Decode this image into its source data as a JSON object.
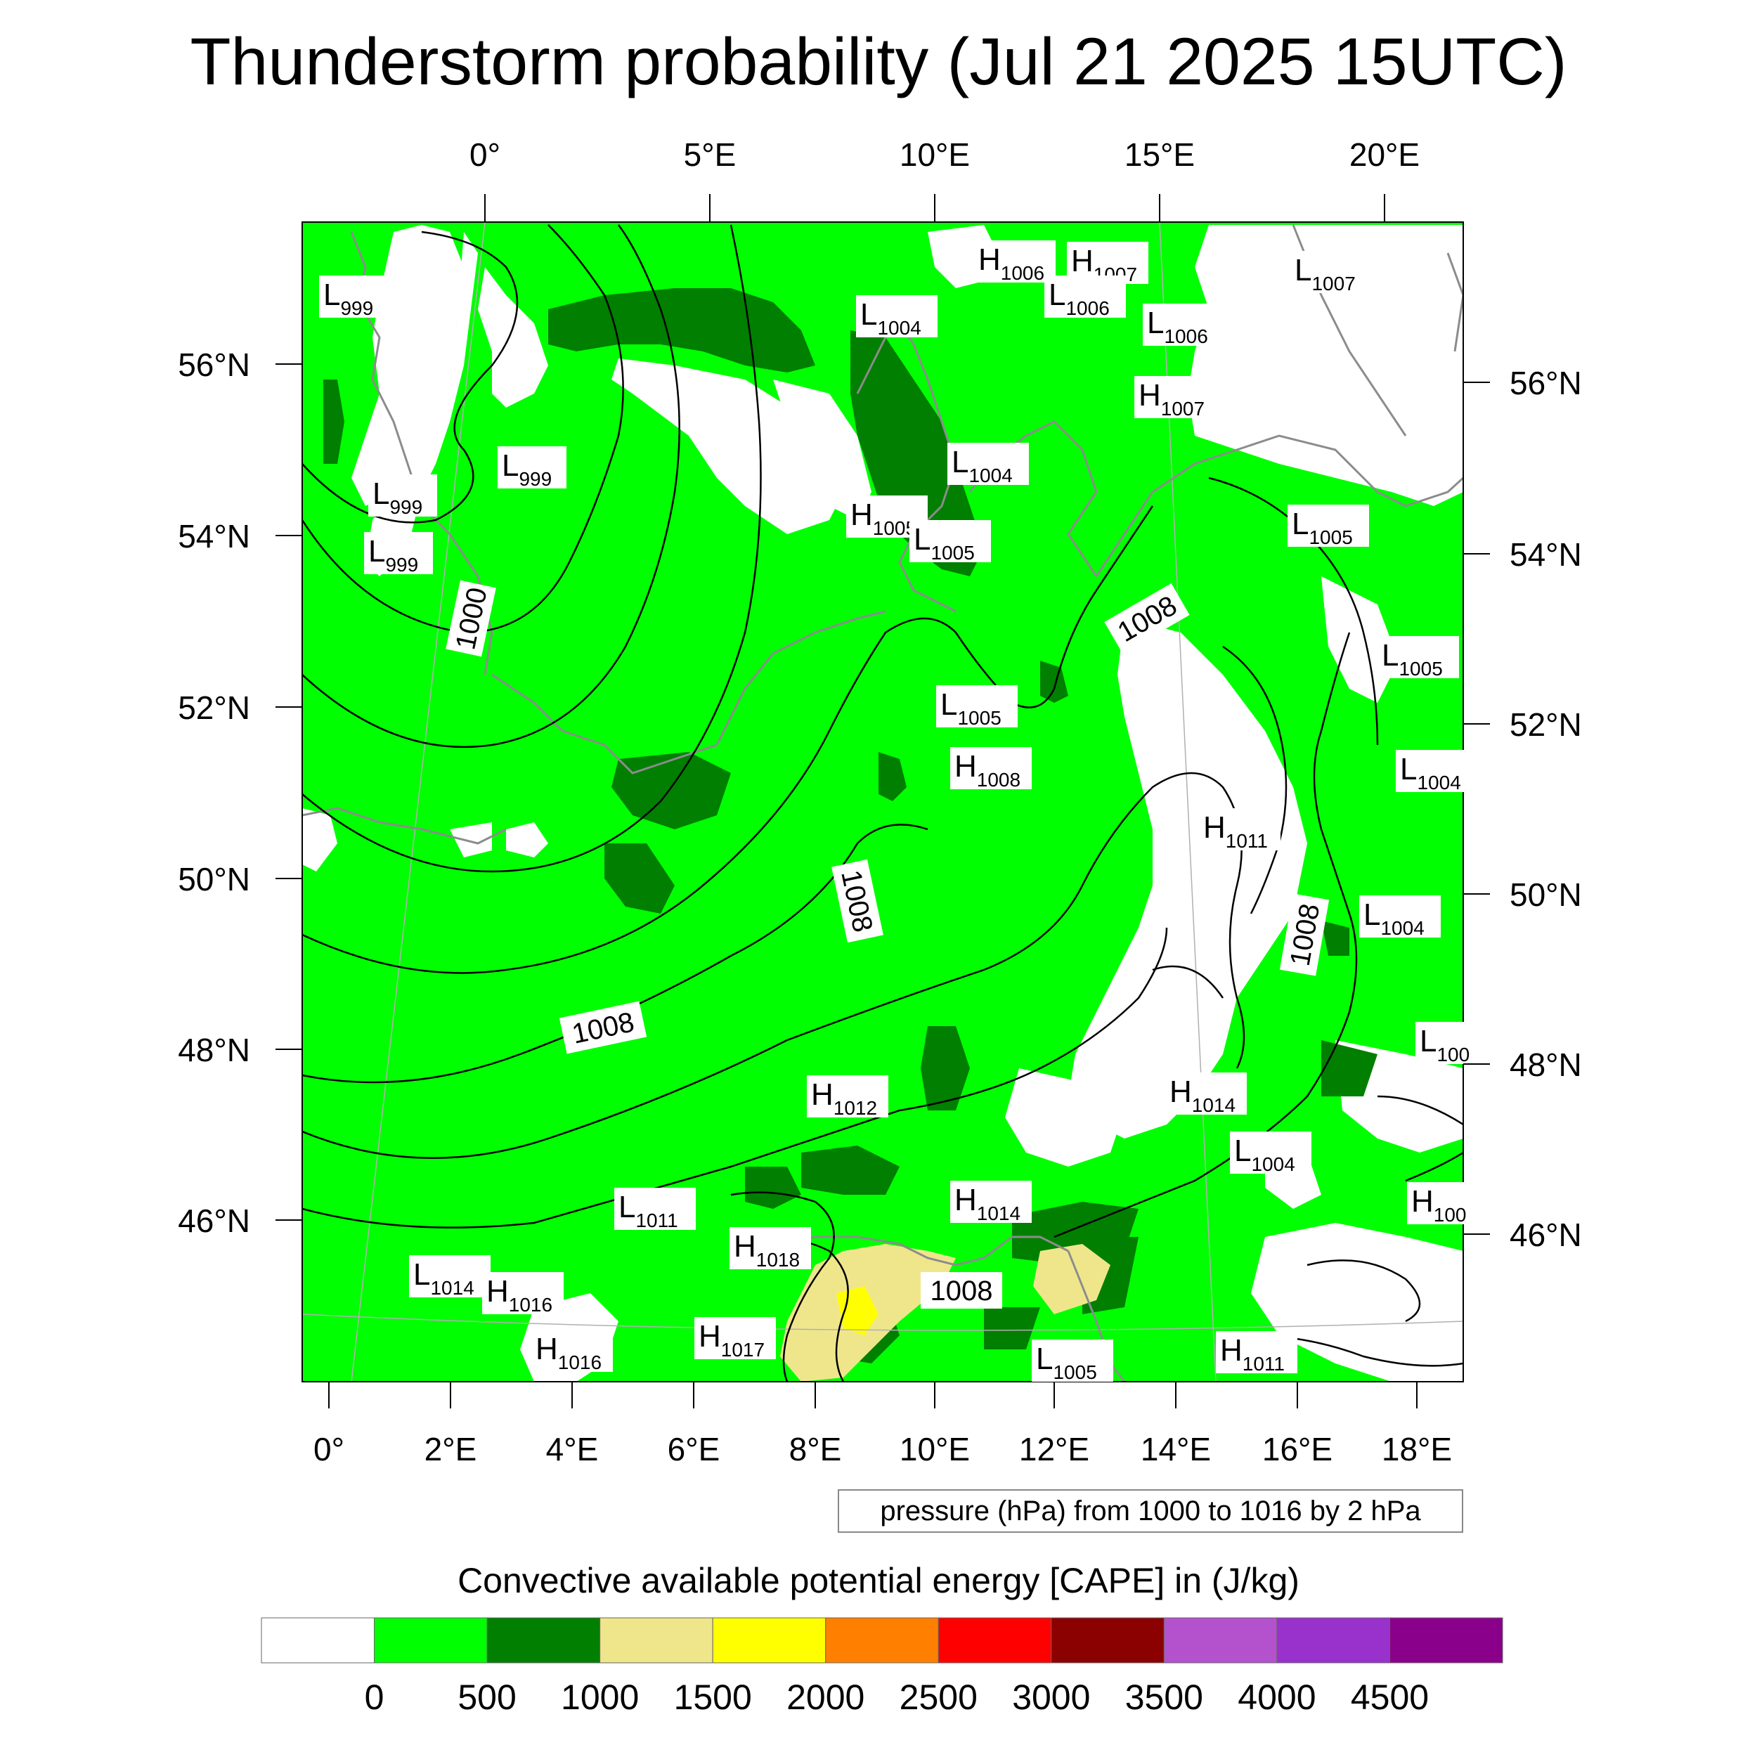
{
  "title": "Thunderstorm probability (Jul 21 2025 15UTC)",
  "top_lon_labels": [
    "0°",
    "5°E",
    "10°E",
    "15°E",
    "20°E"
  ],
  "bottom_lon_labels": [
    "0°",
    "2°E",
    "4°E",
    "6°E",
    "8°E",
    "10°E",
    "12°E",
    "14°E",
    "16°E",
    "18°E"
  ],
  "left_lat_labels": [
    "56°N",
    "54°N",
    "52°N",
    "50°N",
    "48°N",
    "46°N"
  ],
  "right_lat_labels": [
    "56°N",
    "54°N",
    "52°N",
    "50°N",
    "48°N",
    "46°N"
  ],
  "pressure_info": "pressure (hPa) from 1000 to 1016 by 2 hPa",
  "colorbar": {
    "title": "Convective available potential energy [CAPE] in (J/kg)",
    "colors": [
      "#ffffff",
      "#00ff00",
      "#007f00",
      "#efe68c",
      "#ffff00",
      "#ff8000",
      "#ff0000",
      "#8b0000",
      "#b452cd",
      "#9932cc",
      "#8b008b"
    ],
    "labels": [
      "0",
      "500",
      "1000",
      "1500",
      "2000",
      "2500",
      "3000",
      "3500",
      "4000",
      "4500"
    ]
  },
  "contour_labels": [
    "1000",
    "1008",
    "1008",
    "1008",
    "1008",
    "1008"
  ],
  "pressure_centers": [
    {
      "type": "L",
      "value": "999"
    },
    {
      "type": "H",
      "value": "1006"
    },
    {
      "type": "H",
      "value": "1007"
    },
    {
      "type": "L",
      "value": "1006"
    },
    {
      "type": "L",
      "value": "1007"
    },
    {
      "type": "L",
      "value": "1004"
    },
    {
      "type": "L",
      "value": "1006"
    },
    {
      "type": "H",
      "value": "1007"
    },
    {
      "type": "L",
      "value": "999"
    },
    {
      "type": "L",
      "value": "999"
    },
    {
      "type": "L",
      "value": "999"
    },
    {
      "type": "L",
      "value": "1004"
    },
    {
      "type": "H",
      "value": "1005"
    },
    {
      "type": "L",
      "value": "1005"
    },
    {
      "type": "L",
      "value": "1005"
    },
    {
      "type": "L",
      "value": "1005"
    },
    {
      "type": "L",
      "value": "1005"
    },
    {
      "type": "H",
      "value": "1008"
    },
    {
      "type": "L",
      "value": "1004"
    },
    {
      "type": "H",
      "value": "1011"
    },
    {
      "type": "L",
      "value": "1004"
    },
    {
      "type": "L",
      "value": "100"
    },
    {
      "type": "H",
      "value": "1012"
    },
    {
      "type": "H",
      "value": "1014"
    },
    {
      "type": "L",
      "value": "1004"
    },
    {
      "type": "H",
      "value": "100"
    },
    {
      "type": "L",
      "value": "1011"
    },
    {
      "type": "H",
      "value": "1014"
    },
    {
      "type": "H",
      "value": "1018"
    },
    {
      "type": "L",
      "value": "1014"
    },
    {
      "type": "H",
      "value": "1016"
    },
    {
      "type": "H",
      "value": "1016"
    },
    {
      "type": "H",
      "value": "1017"
    },
    {
      "type": "L",
      "value": "1005"
    },
    {
      "type": "H",
      "value": "1011"
    }
  ]
}
